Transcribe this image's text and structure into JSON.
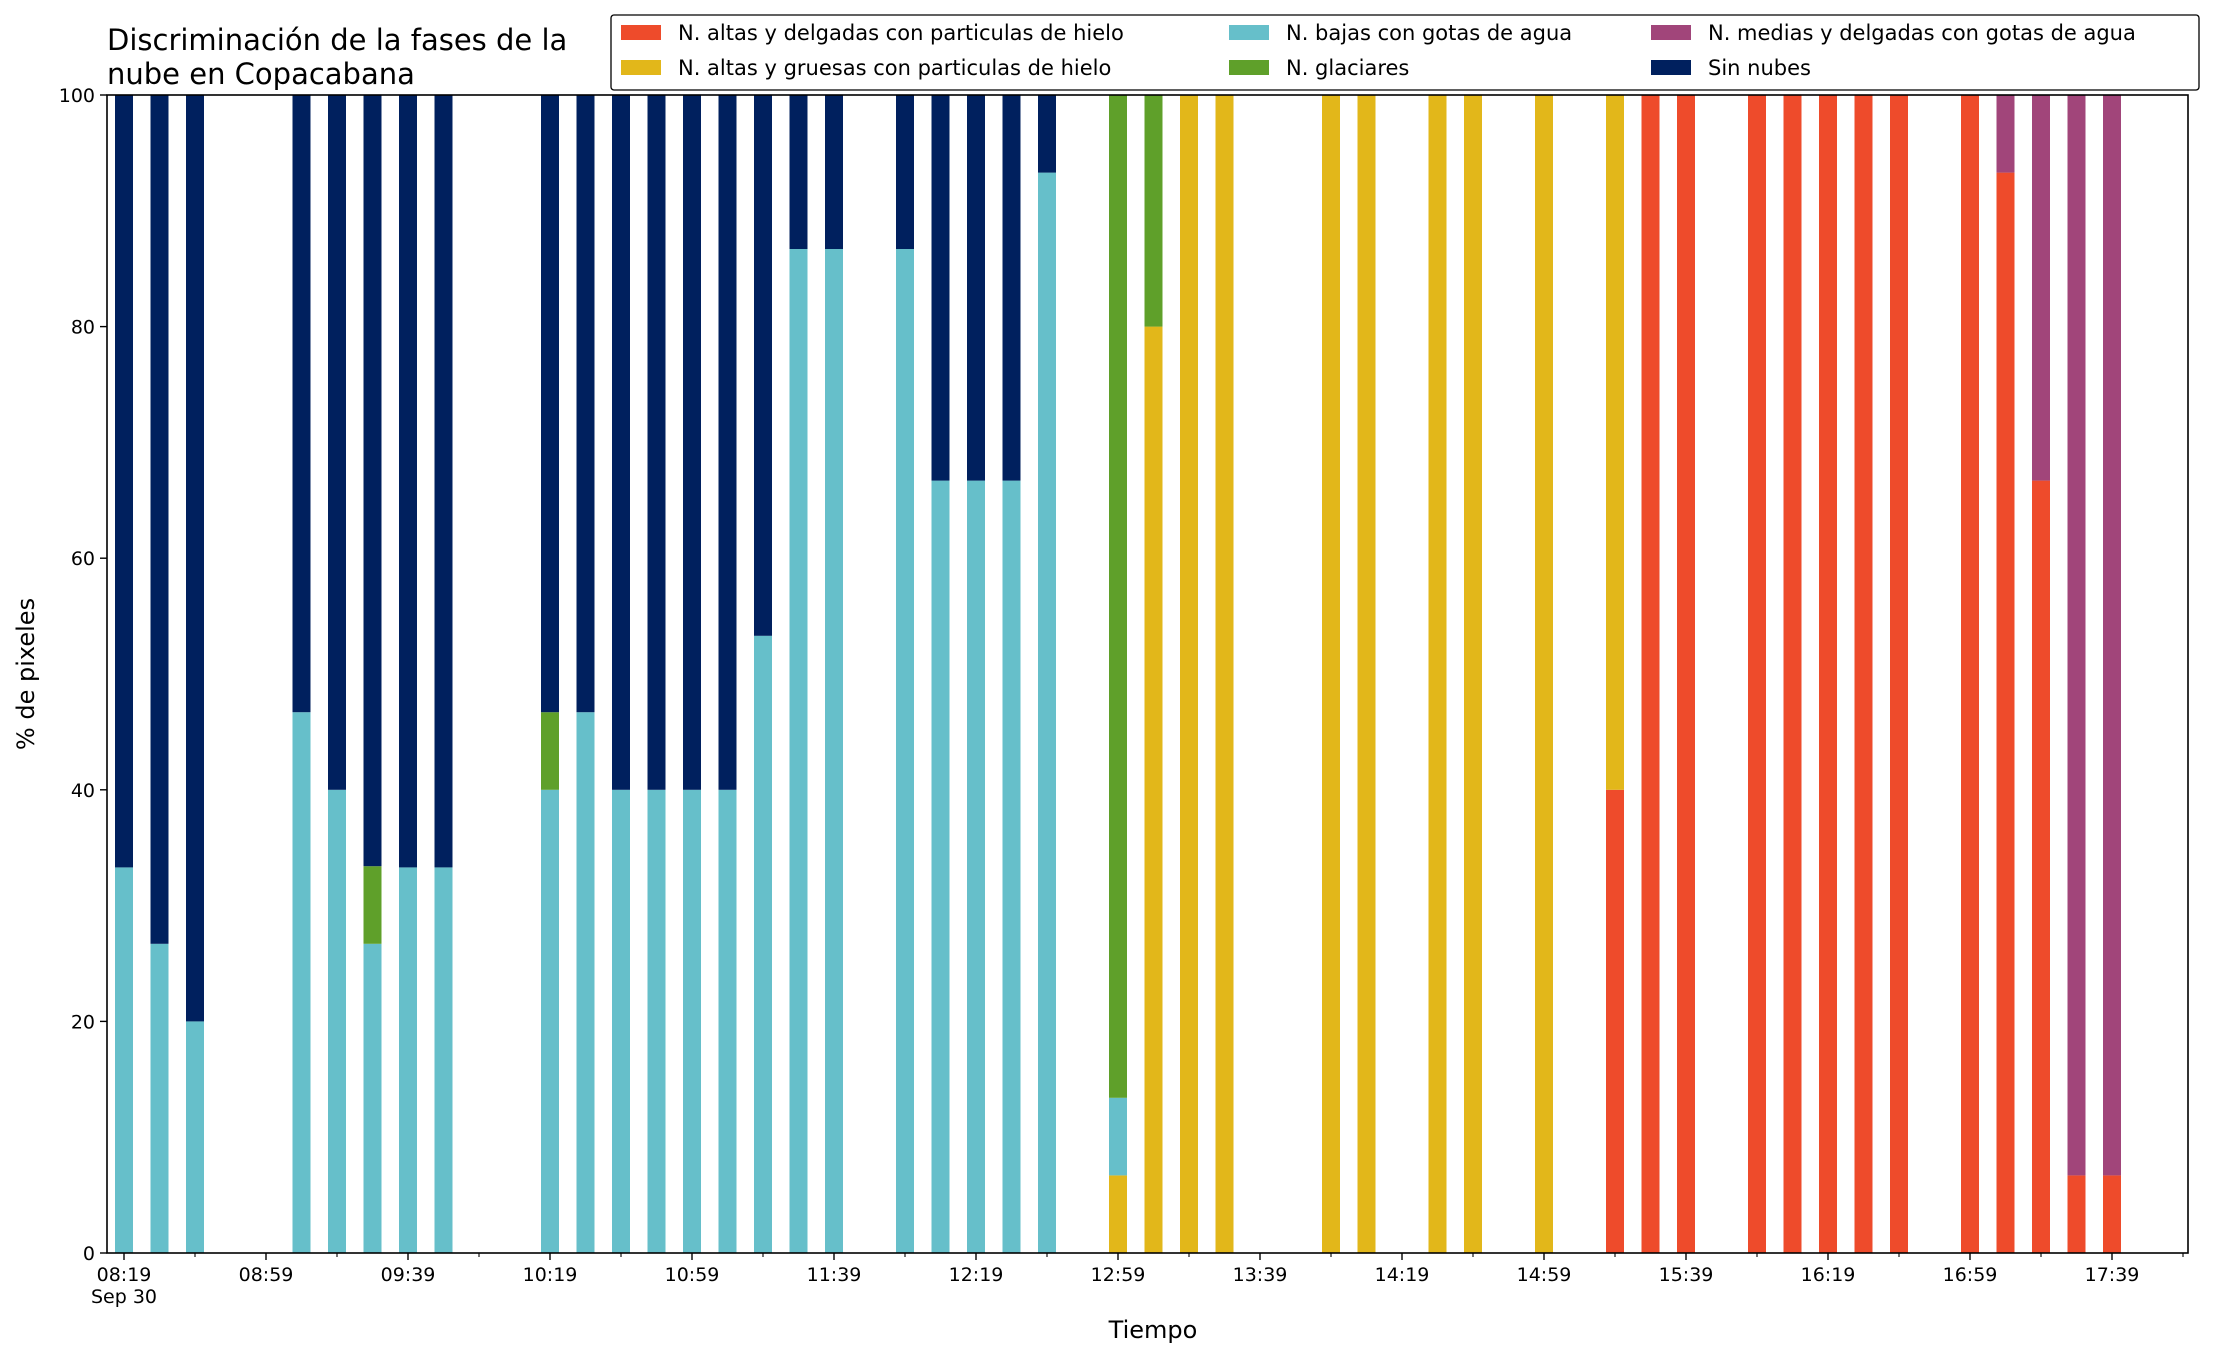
{
  "chart_data": {
    "type": "bar",
    "stacked": true,
    "title_lines": [
      "Discriminación de la fases de la",
      "nube en Copacabana"
    ],
    "xlabel": "Tiempo",
    "ylabel": "% de pixeles",
    "ylim": [
      0,
      100
    ],
    "yticks": [
      "0",
      "20",
      "40",
      "60",
      "80",
      "100"
    ],
    "xtick_labels": [
      "08:19",
      "08:59",
      "09:39",
      "10:19",
      "10:59",
      "11:39",
      "12:19",
      "12:59",
      "13:39",
      "14:19",
      "14:59",
      "15:39",
      "16:19",
      "16:59",
      "17:39"
    ],
    "xtick_date": "Sep 30",
    "grid": false,
    "legend_position": "top-right",
    "series": [
      {
        "key": "altas_delgadas",
        "name": "N. altas y delgadas con particulas de hielo",
        "color": "#ee4b2b"
      },
      {
        "key": "altas_gruesas",
        "name": "N. altas y gruesas con particulas de hielo",
        "color": "#e2b71a"
      },
      {
        "key": "bajas_agua",
        "name": "N. bajas con gotas de agua",
        "color": "#66bfca"
      },
      {
        "key": "glaciares",
        "name": "N. glaciares",
        "color": "#5fa02a"
      },
      {
        "key": "medias_delgadas",
        "name": "N. medias y delgadas con gotas de agua",
        "color": "#a1457a"
      },
      {
        "key": "sin_nubes",
        "name": "Sin nubes",
        "color": "#00205e"
      }
    ],
    "stack_order": [
      "altas_delgadas",
      "altas_gruesas",
      "bajas_agua",
      "glaciares",
      "medias_delgadas",
      "sin_nubes"
    ],
    "bars": [
      {
        "time": "08:19",
        "values": {
          "bajas_agua": 33.3,
          "sin_nubes": 66.7
        }
      },
      {
        "time": "08:29",
        "values": {
          "bajas_agua": 26.7,
          "sin_nubes": 73.3
        }
      },
      {
        "time": "08:39",
        "values": {
          "bajas_agua": 20.0,
          "sin_nubes": 80.0
        }
      },
      {
        "time": "09:09",
        "values": {
          "bajas_agua": 46.7,
          "sin_nubes": 53.3
        }
      },
      {
        "time": "09:19",
        "values": {
          "bajas_agua": 40.0,
          "sin_nubes": 60.0
        }
      },
      {
        "time": "09:29",
        "values": {
          "bajas_agua": 26.7,
          "glaciares": 6.7,
          "sin_nubes": 66.6
        }
      },
      {
        "time": "09:39",
        "values": {
          "bajas_agua": 33.3,
          "sin_nubes": 66.7
        }
      },
      {
        "time": "09:49",
        "values": {
          "bajas_agua": 33.3,
          "sin_nubes": 66.7
        }
      },
      {
        "time": "10:19",
        "values": {
          "bajas_agua": 40.0,
          "glaciares": 6.7,
          "sin_nubes": 53.3
        }
      },
      {
        "time": "10:29",
        "values": {
          "bajas_agua": 46.7,
          "sin_nubes": 53.3
        }
      },
      {
        "time": "10:39",
        "values": {
          "bajas_agua": 40.0,
          "sin_nubes": 60.0
        }
      },
      {
        "time": "10:49",
        "values": {
          "bajas_agua": 40.0,
          "sin_nubes": 60.0
        }
      },
      {
        "time": "10:59",
        "values": {
          "bajas_agua": 40.0,
          "sin_nubes": 60.0
        }
      },
      {
        "time": "11:09",
        "values": {
          "bajas_agua": 40.0,
          "sin_nubes": 60.0
        }
      },
      {
        "time": "11:19",
        "values": {
          "bajas_agua": 53.3,
          "sin_nubes": 46.7
        }
      },
      {
        "time": "11:29",
        "values": {
          "bajas_agua": 86.7,
          "sin_nubes": 13.3
        }
      },
      {
        "time": "11:39",
        "values": {
          "bajas_agua": 86.7,
          "sin_nubes": 13.3
        }
      },
      {
        "time": "11:59",
        "values": {
          "bajas_agua": 86.7,
          "sin_nubes": 13.3
        }
      },
      {
        "time": "12:09",
        "values": {
          "bajas_agua": 66.7,
          "sin_nubes": 33.3
        }
      },
      {
        "time": "12:19",
        "values": {
          "bajas_agua": 66.7,
          "sin_nubes": 33.3
        }
      },
      {
        "time": "12:29",
        "values": {
          "bajas_agua": 66.7,
          "sin_nubes": 33.3
        }
      },
      {
        "time": "12:39",
        "values": {
          "bajas_agua": 93.3,
          "sin_nubes": 6.7
        }
      },
      {
        "time": "12:59",
        "values": {
          "altas_gruesas": 6.7,
          "bajas_agua": 6.7,
          "glaciares": 86.6
        }
      },
      {
        "time": "13:09",
        "values": {
          "altas_gruesas": 80.0,
          "glaciares": 20.0
        }
      },
      {
        "time": "13:19",
        "values": {
          "altas_gruesas": 100
        }
      },
      {
        "time": "13:29",
        "values": {
          "altas_gruesas": 100
        }
      },
      {
        "time": "13:59",
        "values": {
          "altas_gruesas": 100
        }
      },
      {
        "time": "14:09",
        "values": {
          "altas_gruesas": 100
        }
      },
      {
        "time": "14:29",
        "values": {
          "altas_gruesas": 100
        }
      },
      {
        "time": "14:39",
        "values": {
          "altas_gruesas": 100
        }
      },
      {
        "time": "14:59",
        "values": {
          "altas_gruesas": 100
        }
      },
      {
        "time": "15:19",
        "values": {
          "altas_delgadas": 40.0,
          "altas_gruesas": 60.0
        }
      },
      {
        "time": "15:29",
        "values": {
          "altas_delgadas": 100
        }
      },
      {
        "time": "15:39",
        "values": {
          "altas_delgadas": 100
        }
      },
      {
        "time": "15:59",
        "values": {
          "altas_delgadas": 100
        }
      },
      {
        "time": "16:09",
        "values": {
          "altas_delgadas": 100
        }
      },
      {
        "time": "16:19",
        "values": {
          "altas_delgadas": 100
        }
      },
      {
        "time": "16:29",
        "values": {
          "altas_delgadas": 100
        }
      },
      {
        "time": "16:39",
        "values": {
          "altas_delgadas": 100
        }
      },
      {
        "time": "16:59",
        "values": {
          "altas_delgadas": 100
        }
      },
      {
        "time": "17:09",
        "values": {
          "altas_delgadas": 93.3,
          "medias_delgadas": 6.7
        }
      },
      {
        "time": "17:19",
        "values": {
          "altas_delgadas": 66.7,
          "medias_delgadas": 33.3
        }
      },
      {
        "time": "17:29",
        "values": {
          "altas_delgadas": 6.7,
          "medias_delgadas": 93.3
        }
      },
      {
        "time": "17:39",
        "values": {
          "altas_delgadas": 6.7,
          "medias_delgadas": 93.3
        }
      }
    ]
  }
}
